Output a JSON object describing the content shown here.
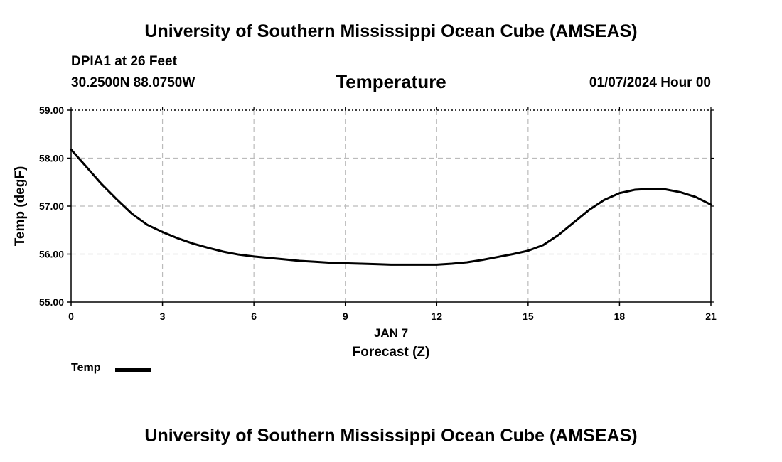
{
  "header": {
    "title": "University of Southern Mississippi Ocean Cube (AMSEAS)",
    "station": "DPIA1 at 26 Feet",
    "coords": "30.2500N  88.0750W",
    "variable": "Temperature",
    "datetime": "01/07/2024 Hour 00"
  },
  "footer": {
    "title": "University of Southern Mississippi Ocean Cube (AMSEAS)"
  },
  "legend": {
    "label": "Temp"
  },
  "chart_data": {
    "type": "line",
    "title": "Temperature",
    "xlabel": "Forecast (Z)",
    "xsublabel": "JAN 7",
    "ylabel": "Temp (degF)",
    "xlim": [
      0,
      21
    ],
    "ylim": [
      55,
      59
    ],
    "xticks": [
      0,
      3,
      6,
      9,
      12,
      15,
      18,
      21
    ],
    "xtick_labels": [
      "0",
      "3",
      "6",
      "9",
      "12",
      "15",
      "18",
      "21"
    ],
    "yticks": [
      55,
      56,
      57,
      58,
      59
    ],
    "ytick_labels": [
      "55.00",
      "56.00",
      "57.00",
      "58.00",
      "59.00"
    ],
    "grid": true,
    "legend_position": "bottom-left",
    "series": [
      {
        "name": "Temp",
        "color": "#000000",
        "x": [
          0,
          0.5,
          1,
          1.5,
          2,
          2.5,
          3,
          3.5,
          4,
          4.5,
          5,
          5.5,
          6,
          6.5,
          7,
          7.5,
          8,
          8.5,
          9,
          9.5,
          10,
          10.5,
          11,
          11.5,
          12,
          12.5,
          13,
          13.5,
          14,
          14.5,
          15,
          15.5,
          16,
          16.5,
          17,
          17.5,
          18,
          18.5,
          19,
          19.5,
          20,
          20.5,
          21
        ],
        "y": [
          58.18,
          57.82,
          57.46,
          57.14,
          56.84,
          56.61,
          56.46,
          56.33,
          56.22,
          56.13,
          56.05,
          55.99,
          55.95,
          55.92,
          55.89,
          55.86,
          55.84,
          55.82,
          55.81,
          55.8,
          55.79,
          55.78,
          55.78,
          55.78,
          55.78,
          55.8,
          55.83,
          55.88,
          55.94,
          56.0,
          56.07,
          56.19,
          56.4,
          56.66,
          56.92,
          57.13,
          57.27,
          57.34,
          57.36,
          57.35,
          57.29,
          57.19,
          57.03
        ]
      }
    ]
  }
}
